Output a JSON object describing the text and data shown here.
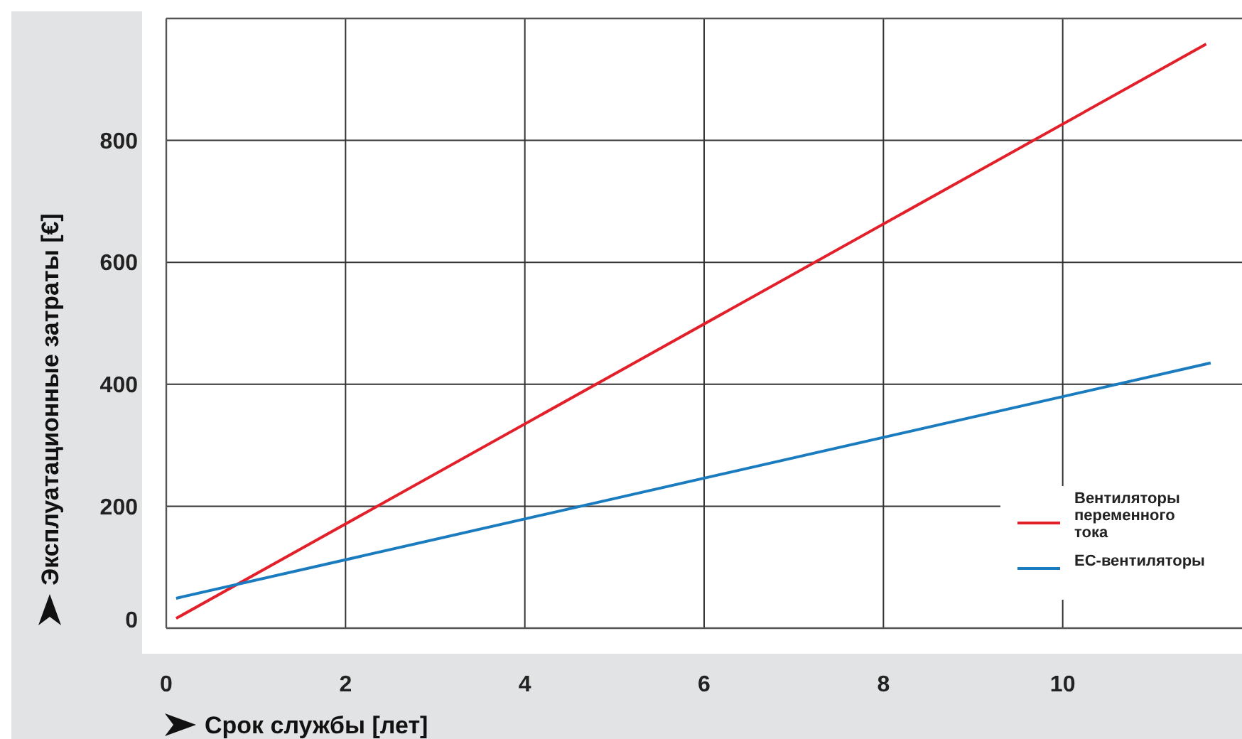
{
  "chart_data": {
    "type": "line",
    "xlabel": "Срок службы [лет]",
    "ylabel": "Эксплуатационные затраты [€]",
    "xlim": [
      0,
      12
    ],
    "ylim": [
      0,
      1000
    ],
    "xticks": [
      0,
      2,
      4,
      6,
      8,
      10
    ],
    "yticks": [
      0,
      200,
      400,
      600,
      800
    ],
    "series": [
      {
        "name": "Вентиляторы переменного тока",
        "color": "#e3202a",
        "x": [
          0.11,
          11.6
        ],
        "values": [
          16,
          958
        ]
      },
      {
        "name": "EC-вентиляторы",
        "color": "#1a7bbf",
        "x": [
          0.11,
          11.65
        ],
        "values": [
          49,
          435
        ]
      }
    ],
    "grid": true,
    "legend": "bottom right",
    "marker": "none",
    "line_style": "solid"
  }
}
